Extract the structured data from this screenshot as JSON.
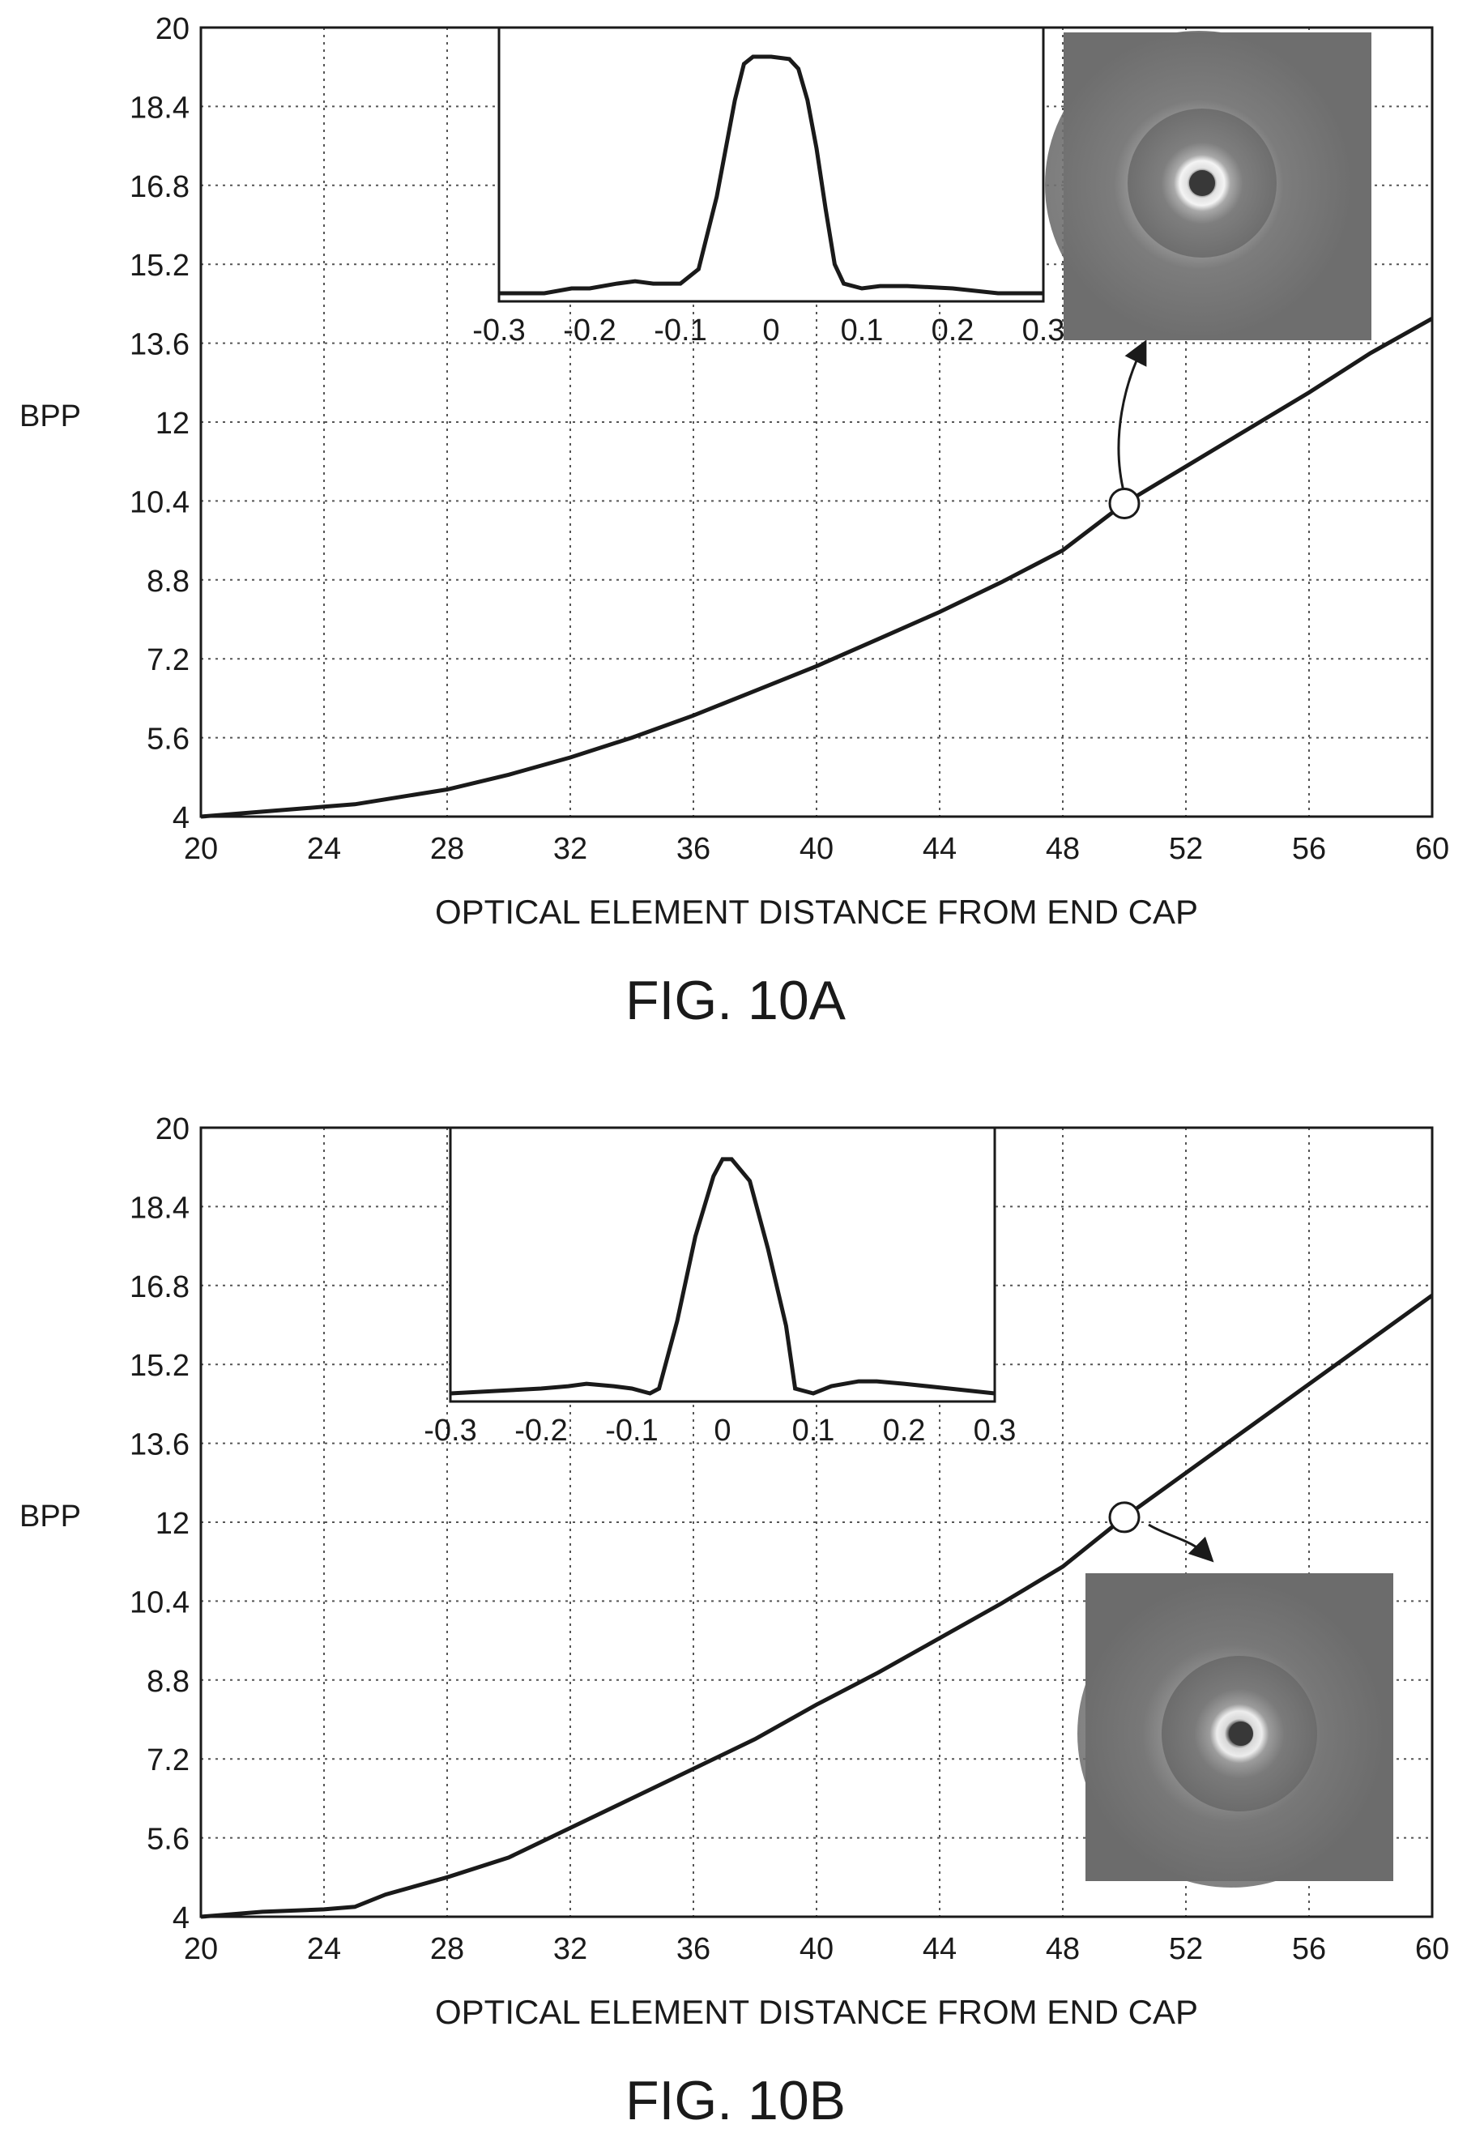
{
  "chart_data": [
    {
      "figure_label": "FIG. 10A",
      "type": "line",
      "title": "",
      "xlabel": "OPTICAL ELEMENT DISTANCE FROM END CAP",
      "ylabel": "BPP",
      "xlim": [
        20,
        60
      ],
      "ylim": [
        4,
        20
      ],
      "xticks": [
        20,
        24,
        28,
        32,
        36,
        40,
        44,
        48,
        52,
        56,
        60
      ],
      "yticks": [
        4,
        5.6,
        7.2,
        8.8,
        10.4,
        12,
        13.6,
        15.2,
        16.8,
        18.4,
        20
      ],
      "ytick_labels": [
        "4",
        "5.6",
        "7.2",
        "8.8",
        "10.4",
        "12",
        "13.6",
        "15.2",
        "16.8",
        "18.4",
        "20"
      ],
      "grid": true,
      "series": [
        {
          "x": [
            20,
            22,
            24,
            25,
            26,
            28,
            30,
            32,
            34,
            36,
            38,
            40,
            42,
            44,
            46,
            48,
            50,
            52,
            54,
            56,
            58,
            60
          ],
          "y": [
            4.0,
            4.1,
            4.2,
            4.25,
            4.35,
            4.55,
            4.85,
            5.2,
            5.6,
            6.05,
            6.55,
            7.05,
            7.6,
            8.15,
            8.75,
            9.4,
            10.35,
            11.1,
            11.85,
            12.6,
            13.4,
            14.1
          ]
        }
      ],
      "highlight_point": {
        "x": 50,
        "y": 10.35
      },
      "inset_profile": {
        "type": "line",
        "x": [
          -0.3,
          -0.25,
          -0.22,
          -0.2,
          -0.17,
          -0.15,
          -0.13,
          -0.1,
          -0.08,
          -0.06,
          -0.04,
          -0.03,
          -0.02,
          0.0,
          0.02,
          0.03,
          0.04,
          0.05,
          0.06,
          0.07,
          0.08,
          0.1,
          0.12,
          0.15,
          0.2,
          0.25,
          0.3
        ],
        "y": [
          0.0,
          0.0,
          0.02,
          0.02,
          0.04,
          0.05,
          0.04,
          0.04,
          0.1,
          0.4,
          0.8,
          0.95,
          0.98,
          0.98,
          0.97,
          0.93,
          0.8,
          0.6,
          0.35,
          0.12,
          0.04,
          0.02,
          0.03,
          0.03,
          0.02,
          0.0,
          0.0
        ],
        "xticks": [
          -0.3,
          -0.2,
          -0.1,
          0,
          0.1,
          0.2,
          0.3
        ],
        "xtick_labels": [
          "-0.3",
          "-0.2",
          "-0.1",
          "0",
          "0.1",
          "0.2",
          "0.3"
        ]
      },
      "beam_image": {
        "shape": "ring",
        "colors": {
          "background": "#6b6b6b",
          "ring": "#e8e8e8",
          "core": "#4e4e4e"
        }
      }
    },
    {
      "figure_label": "FIG. 10B",
      "type": "line",
      "title": "",
      "xlabel": "OPTICAL ELEMENT DISTANCE FROM END CAP",
      "ylabel": "BPP",
      "xlim": [
        20,
        60
      ],
      "ylim": [
        4,
        20
      ],
      "xticks": [
        20,
        24,
        28,
        32,
        36,
        40,
        44,
        48,
        52,
        56,
        60
      ],
      "yticks": [
        4,
        5.6,
        7.2,
        8.8,
        10.4,
        12,
        13.6,
        15.2,
        16.8,
        18.4,
        20
      ],
      "ytick_labels": [
        "4",
        "5.6",
        "7.2",
        "8.8",
        "10.4",
        "12",
        "13.6",
        "15.2",
        "16.8",
        "18.4",
        "20"
      ],
      "grid": true,
      "series": [
        {
          "x": [
            20,
            22,
            24,
            25,
            26,
            28,
            30,
            32,
            34,
            36,
            38,
            40,
            42,
            44,
            46,
            48,
            50,
            52,
            54,
            56,
            58,
            60
          ],
          "y": [
            4.0,
            4.1,
            4.15,
            4.2,
            4.45,
            4.8,
            5.2,
            5.8,
            6.4,
            7.0,
            7.6,
            8.3,
            8.95,
            9.65,
            10.35,
            11.1,
            12.1,
            13.0,
            13.9,
            14.8,
            15.7,
            16.6
          ]
        }
      ],
      "highlight_point": {
        "x": 50,
        "y": 12.1
      },
      "inset_profile": {
        "type": "line",
        "x": [
          -0.3,
          -0.25,
          -0.2,
          -0.17,
          -0.15,
          -0.12,
          -0.1,
          -0.08,
          -0.07,
          -0.05,
          -0.03,
          -0.01,
          0.0,
          0.01,
          0.03,
          0.05,
          0.07,
          0.08,
          0.1,
          0.12,
          0.15,
          0.17,
          0.2,
          0.25,
          0.3
        ],
        "y": [
          0.0,
          0.01,
          0.02,
          0.03,
          0.04,
          0.03,
          0.02,
          0.0,
          0.02,
          0.3,
          0.65,
          0.9,
          0.97,
          0.97,
          0.88,
          0.6,
          0.28,
          0.02,
          0.0,
          0.03,
          0.05,
          0.05,
          0.04,
          0.02,
          0.0
        ],
        "xticks": [
          -0.3,
          -0.2,
          -0.1,
          0,
          0.1,
          0.2,
          0.3
        ],
        "xtick_labels": [
          "-0.3",
          "-0.2",
          "-0.1",
          "0",
          "0.1",
          "0.2",
          "0.3"
        ]
      },
      "beam_image": {
        "shape": "ring",
        "colors": {
          "background": "#6b6b6b",
          "ring": "#e8e8e8",
          "core": "#4e4e4e"
        }
      }
    }
  ],
  "colors": {
    "line": "#1a1a1a",
    "grid": "#555555",
    "axis": "#1a1a1a"
  }
}
